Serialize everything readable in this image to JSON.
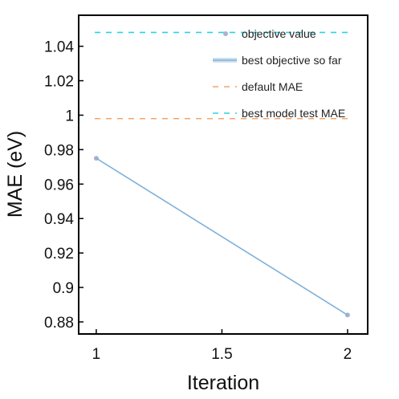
{
  "chart_data": {
    "type": "line",
    "title": "",
    "xlabel": "Iteration",
    "ylabel": "MAE (eV)",
    "xlim": [
      0.93,
      2.08
    ],
    "ylim": [
      0.873,
      1.058
    ],
    "x_ticks": [
      1,
      1.5,
      2
    ],
    "x_tick_labels": [
      "1",
      "1.5",
      "2"
    ],
    "y_ticks": [
      0.88,
      0.9,
      0.92,
      0.94,
      0.96,
      0.98,
      1.0,
      1.02,
      1.04
    ],
    "y_tick_labels": [
      "0.88",
      "0.9",
      "0.92",
      "0.94",
      "0.96",
      "0.98",
      "1",
      "1.02",
      "1.04"
    ],
    "grid": false,
    "legend_position": "top-right",
    "series": [
      {
        "name": "objective value",
        "kind": "scatter",
        "color": "#a9b3cc",
        "x": [
          1,
          2
        ],
        "y": [
          0.975,
          0.884
        ]
      },
      {
        "name": "best objective so far",
        "kind": "line",
        "color": "#7fb0d8",
        "x": [
          1,
          2
        ],
        "y": [
          0.975,
          0.884
        ]
      },
      {
        "name": "default MAE",
        "kind": "hline-dashed",
        "color": "#f4a46a",
        "y": 0.998
      },
      {
        "name": "best model test MAE",
        "kind": "hline-dashed",
        "color": "#2ad4e6",
        "y": 1.048
      }
    ]
  }
}
